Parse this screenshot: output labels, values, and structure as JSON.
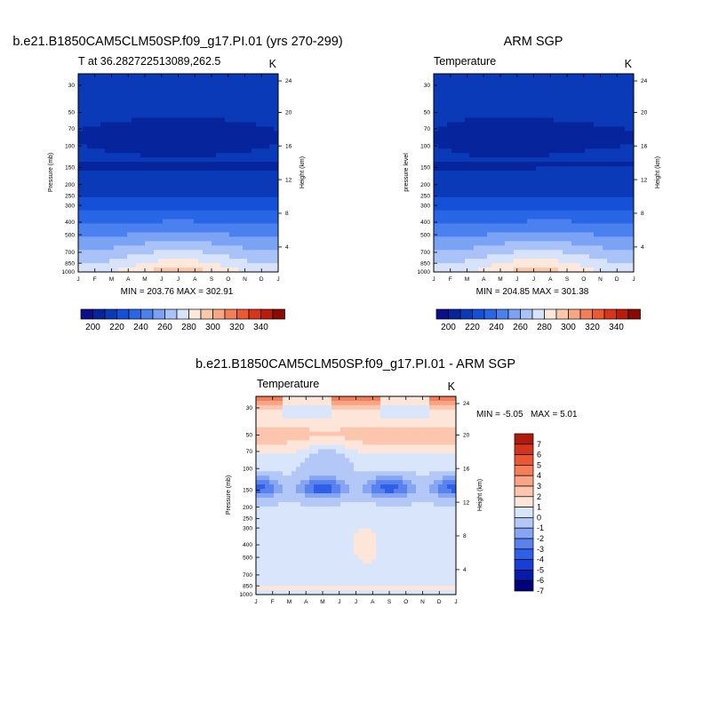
{
  "chart_data": [
    {
      "type": "heatmap",
      "id": "model",
      "title": "b.e21.B1850CAM5CLM50SP.f09_g17.PI.01 (yrs 270-299)",
      "subtitle_left": "T at 36.282722513089,262.5",
      "units": "K",
      "xlabel": "",
      "ylabel": "Pressure (mb)",
      "ylabel_right": "Height (km)",
      "x_ticks": [
        "J",
        "F",
        "M",
        "A",
        "M",
        "J",
        "J",
        "A",
        "S",
        "O",
        "N",
        "D",
        "J"
      ],
      "y_ticks": [
        "30",
        "50",
        "70",
        "100",
        "150",
        "200",
        "250",
        "300",
        "400",
        "500",
        "700",
        "850",
        "1000"
      ],
      "height_ticks": [
        "24",
        "20",
        "16",
        "12",
        "8",
        "4"
      ],
      "stats": "MIN = 203.76 MAX = 302.91",
      "min": 203.76,
      "max": 302.91,
      "colorbar_labels": [
        "200",
        "220",
        "240",
        "260",
        "280",
        "300",
        "320",
        "340"
      ],
      "colorbar_levels": [
        190,
        200,
        210,
        220,
        230,
        240,
        250,
        260,
        270,
        280,
        290,
        300,
        310,
        320,
        330,
        340,
        350
      ]
    },
    {
      "type": "heatmap",
      "id": "obs",
      "title": "ARM SGP",
      "subtitle_left": "Temperature",
      "units": "K",
      "xlabel": "",
      "ylabel": "pressure level",
      "ylabel_right": "Height (km)",
      "x_ticks": [
        "J",
        "F",
        "M",
        "A",
        "M",
        "J",
        "J",
        "A",
        "S",
        "O",
        "N",
        "D",
        "J"
      ],
      "y_ticks": [
        "30",
        "50",
        "70",
        "100",
        "150",
        "200",
        "250",
        "300",
        "400",
        "500",
        "700",
        "850",
        "1000"
      ],
      "height_ticks": [
        "24",
        "20",
        "16",
        "12",
        "8",
        "4"
      ],
      "stats": "MIN = 204.85 MAX = 301.38",
      "min": 204.85,
      "max": 301.38,
      "colorbar_labels": [
        "200",
        "220",
        "240",
        "260",
        "280",
        "300",
        "320",
        "340"
      ],
      "colorbar_levels": [
        190,
        200,
        210,
        220,
        230,
        240,
        250,
        260,
        270,
        280,
        290,
        300,
        310,
        320,
        330,
        340,
        350
      ]
    },
    {
      "type": "heatmap",
      "id": "diff",
      "title": "b.e21.B1850CAM5CLM50SP.f09_g17.PI.01 - ARM SGP",
      "subtitle_left": "Temperature",
      "units": "K",
      "xlabel": "",
      "ylabel": "Pressure (mb)",
      "ylabel_right": "Height (km)",
      "x_ticks": [
        "J",
        "F",
        "M",
        "A",
        "M",
        "J",
        "J",
        "A",
        "S",
        "O",
        "N",
        "D",
        "J"
      ],
      "y_ticks": [
        "30",
        "50",
        "70",
        "100",
        "150",
        "200",
        "250",
        "300",
        "400",
        "500",
        "700",
        "850",
        "1000"
      ],
      "height_ticks": [
        "24",
        "20",
        "16",
        "12",
        "8",
        "4"
      ],
      "stats_min_label": "MIN =  -5.05",
      "stats_max_label": "MAX =   5.01",
      "min": -5.05,
      "max": 5.01,
      "colorbar_labels": [
        "7",
        "6",
        "5",
        "4",
        "3",
        "2",
        "1",
        "0",
        "-1",
        "-2",
        "-3",
        "-4",
        "-5",
        "-6",
        "-7"
      ]
    }
  ],
  "colors": {
    "temp_palette": [
      "#0c0f8c",
      "#06249b",
      "#0a3ab8",
      "#1450d8",
      "#2866e6",
      "#4a80f0",
      "#7aa2f5",
      "#a9c2f7",
      "#d6e3fb",
      "#fde8db",
      "#fcc8ac",
      "#f9a684",
      "#f47f57",
      "#ec5a32",
      "#d93419",
      "#b81d0c",
      "#8a0a04"
    ],
    "diff_palette": [
      "#00007d",
      "#061ba8",
      "#1640d4",
      "#2f5ee8",
      "#5a82ef",
      "#86a6f3",
      "#b4c8f8",
      "#d8e5fb",
      "#fde6d9",
      "#fcc6ae",
      "#f9a486",
      "#f37e5a",
      "#eb5633",
      "#d4331c",
      "#b01b0d"
    ]
  }
}
